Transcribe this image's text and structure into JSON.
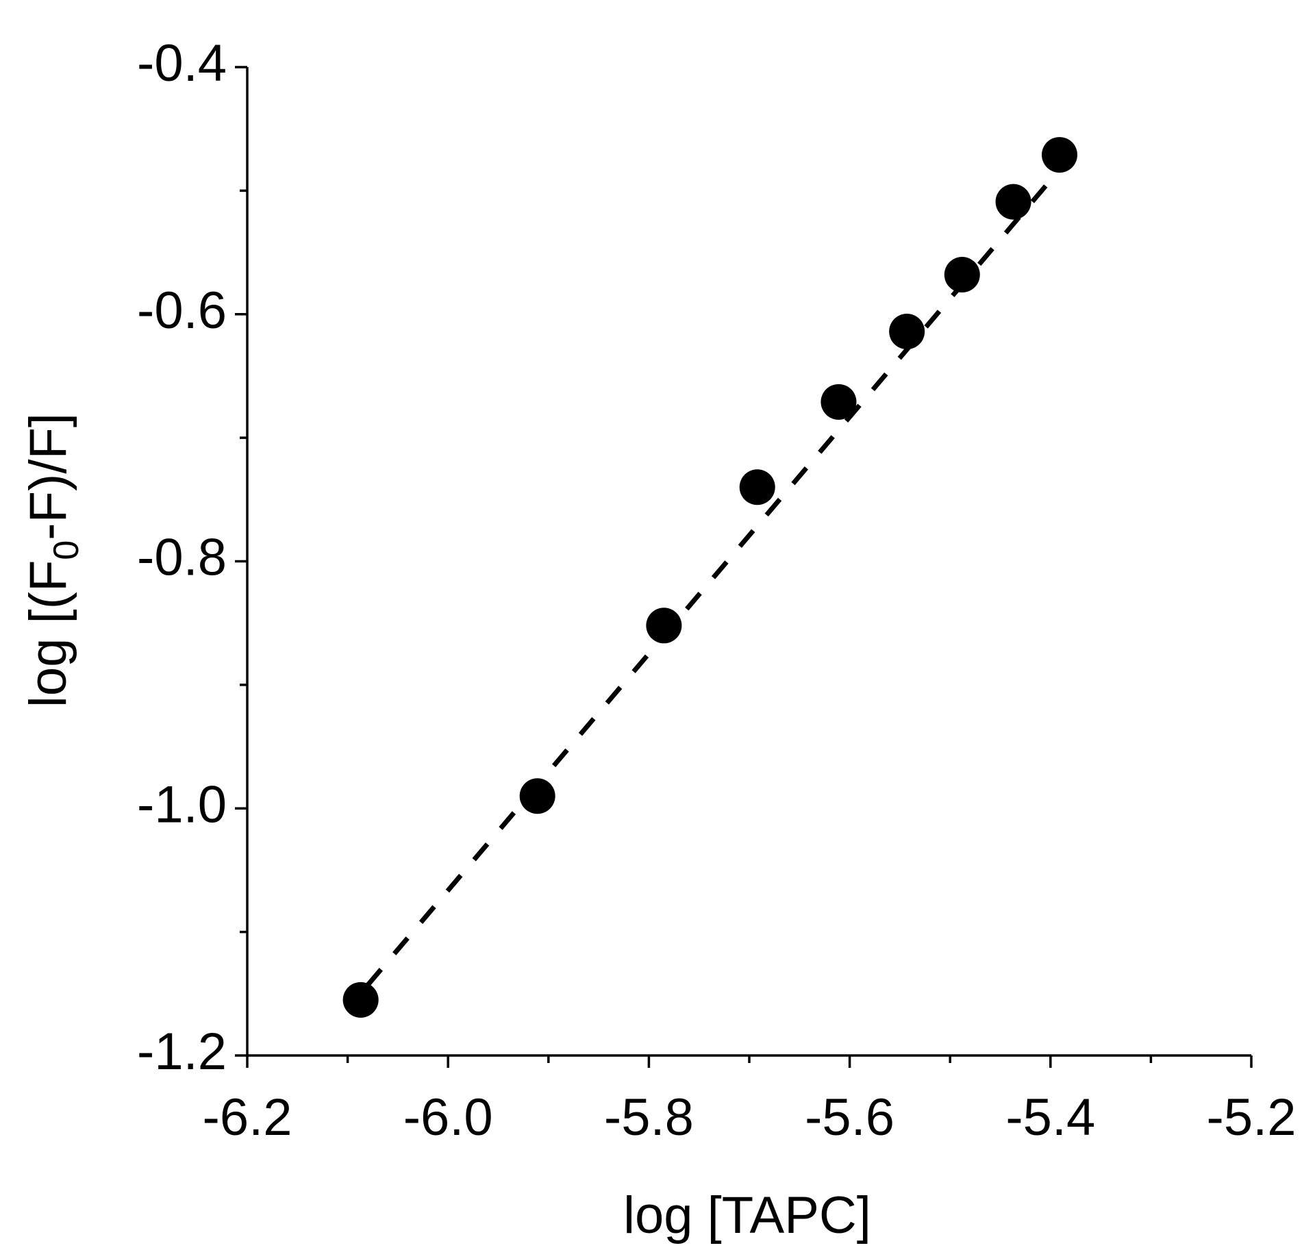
{
  "chart_data": {
    "type": "scatter",
    "xlabel": "log [TAPC]",
    "ylabel_parts": [
      "log [(F",
      "0",
      "-F)/F]"
    ],
    "x": [
      -6.087,
      -5.911,
      -5.785,
      -5.692,
      -5.611,
      -5.543,
      -5.488,
      -5.437,
      -5.391
    ],
    "values": [
      -1.155,
      -0.99,
      -0.852,
      -0.74,
      -0.671,
      -0.614,
      -0.568,
      -0.509,
      -0.471
    ],
    "color": "#000000",
    "fit": {
      "x": [
        -6.08,
        -5.39
      ],
      "y": [
        -1.143,
        -0.482
      ],
      "style": "dashed",
      "color": "#000000"
    },
    "xlim": [
      -6.2,
      -5.2
    ],
    "ylim": [
      -1.2,
      -0.4
    ],
    "xticks": [
      -6.2,
      {
        "value": -6,
        "label": "-6.0"
      },
      -5.8,
      -5.6,
      -5.4,
      -5.2
    ],
    "yticks": [
      -0.4,
      -0.6,
      -0.8,
      {
        "value": -1,
        "label": "-1.0"
      },
      -1.2
    ],
    "xminorticks": [
      -6.1,
      -5.9,
      -5.7,
      -5.5,
      -5.3
    ],
    "yminorticks": [
      -0.5,
      -0.7,
      -0.9,
      -1.1
    ],
    "grid": false
  }
}
